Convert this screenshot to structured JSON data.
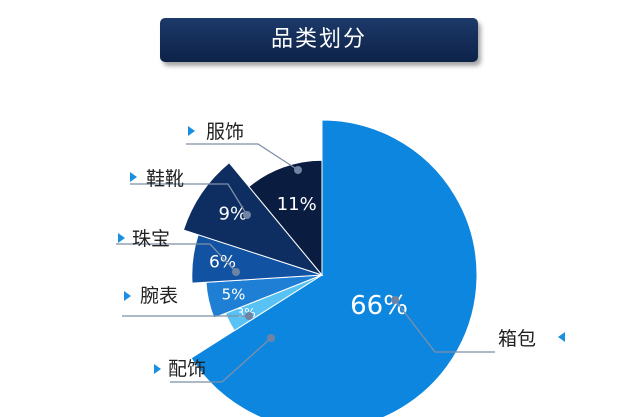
{
  "chart_data": {
    "type": "pie",
    "title": "品类划分",
    "slices": [
      {
        "label": "箱包",
        "value": 66,
        "value_label": "66%",
        "color": "#0d86e0"
      },
      {
        "label": "配饰",
        "value": 3,
        "value_label": "3%",
        "color": "#58c2f5"
      },
      {
        "label": "腕表",
        "value": 5,
        "value_label": "5%",
        "color": "#1f7fd4"
      },
      {
        "label": "珠宝",
        "value": 6,
        "value_label": "6%",
        "color": "#1252a3"
      },
      {
        "label": "鞋靴",
        "value": 9,
        "value_label": "9%",
        "color": "#0e2e62"
      },
      {
        "label": "服饰",
        "value": 11,
        "value_label": "11%",
        "color": "#0a1c40"
      }
    ]
  }
}
